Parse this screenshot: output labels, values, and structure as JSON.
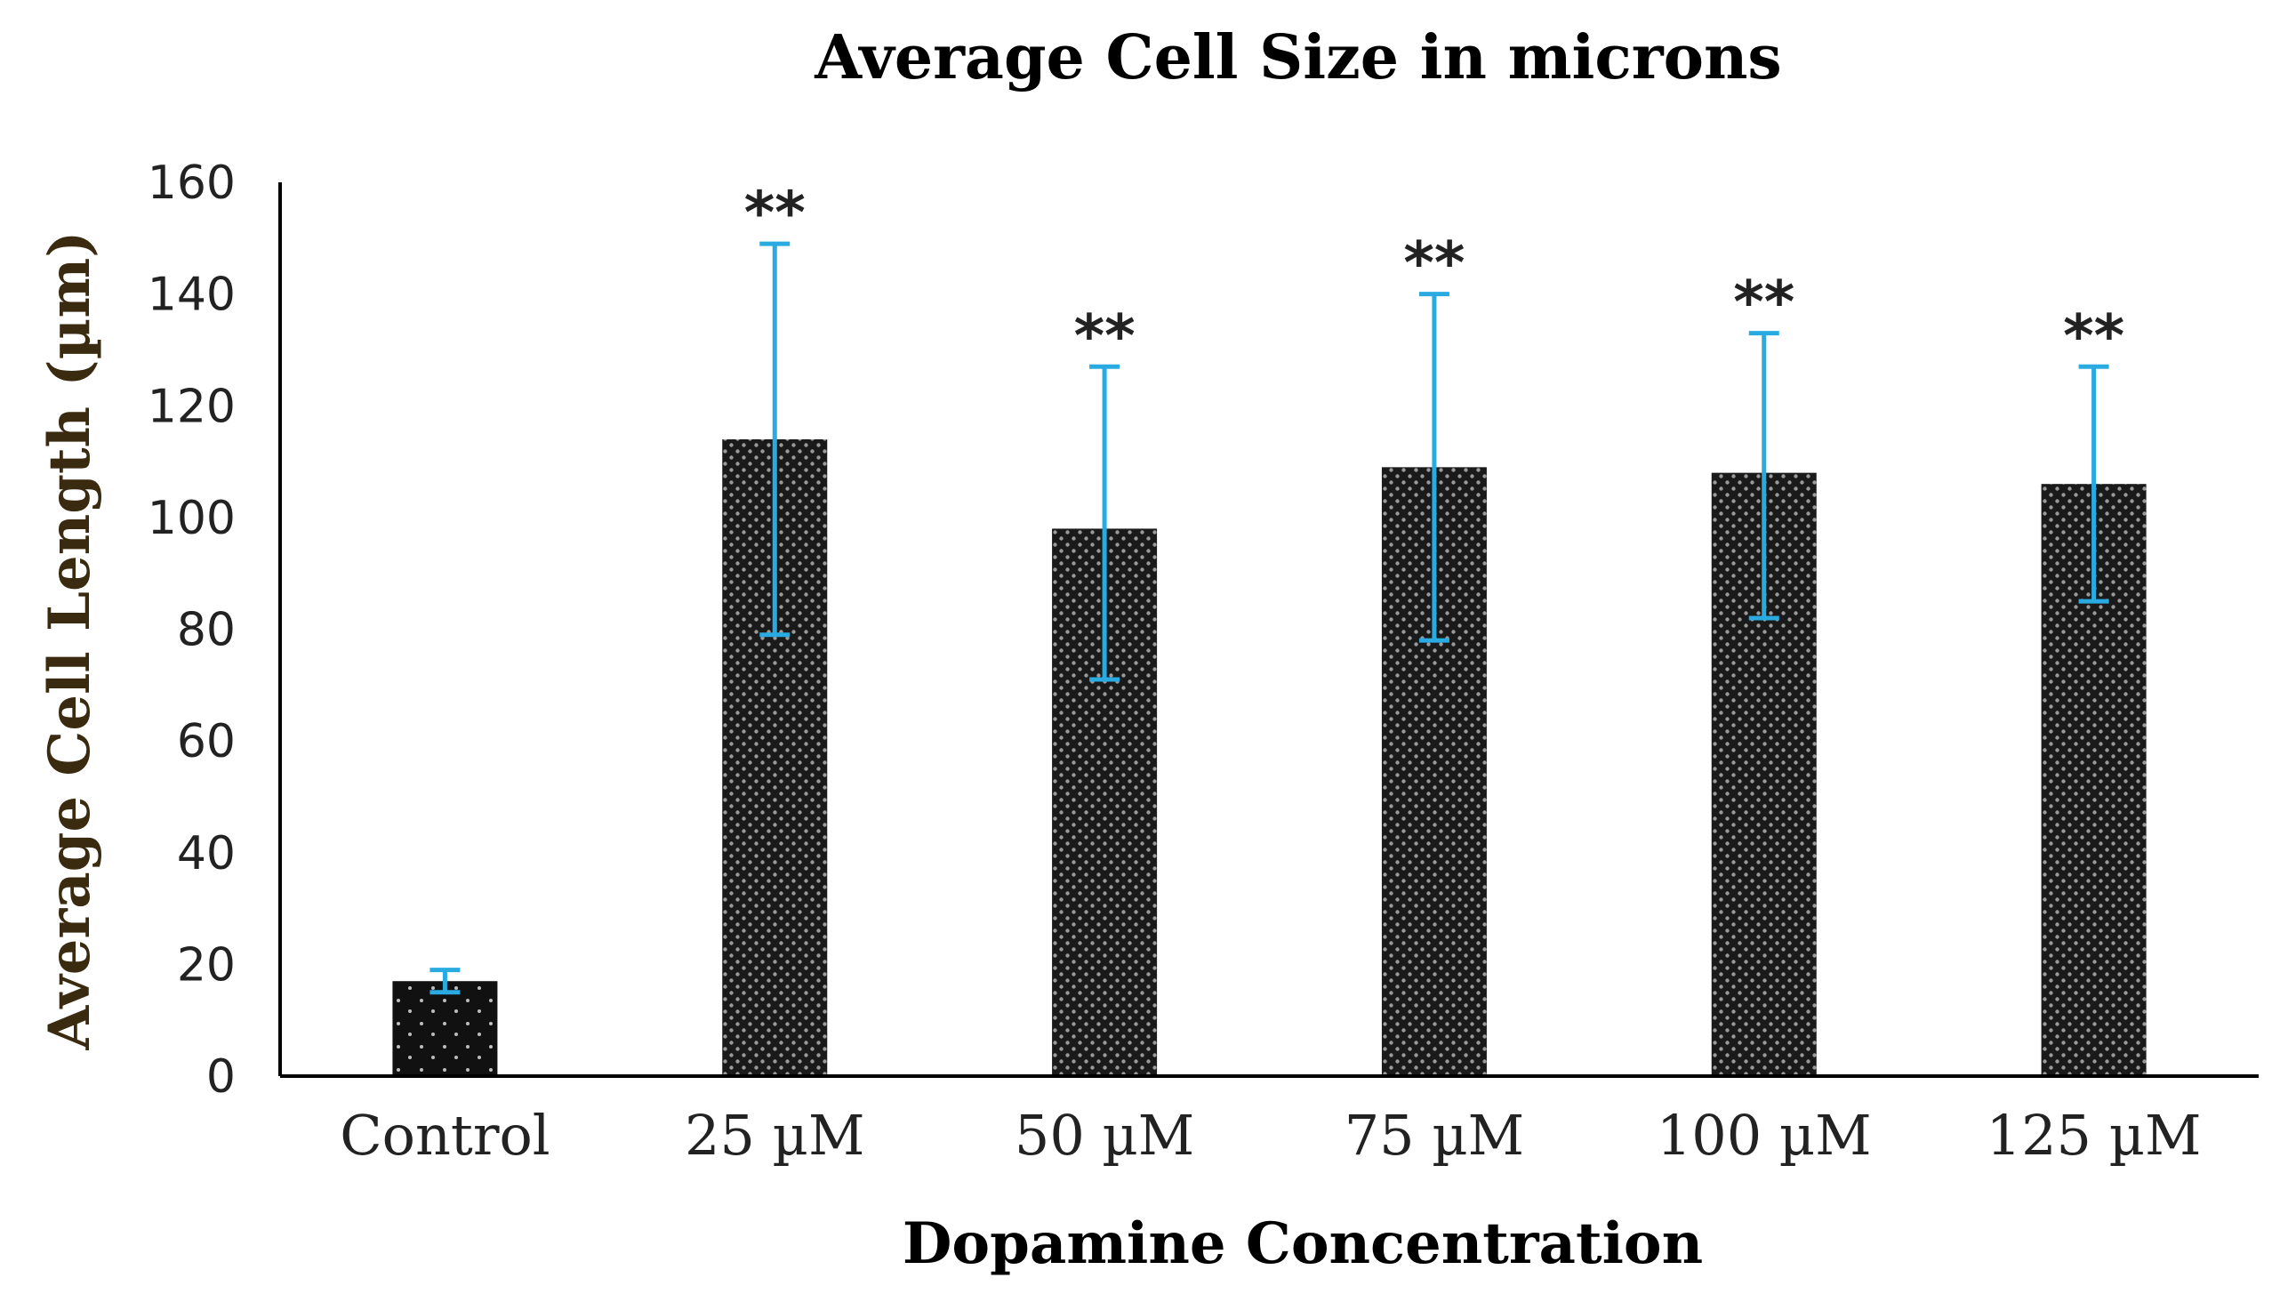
{
  "chart_data": {
    "type": "bar",
    "title": "Average Cell Size in microns",
    "xlabel": "Dopamine Concentration",
    "ylabel": "Average Cell Length (µm)",
    "categories": [
      "Control",
      "25 µM",
      "50 µM",
      "75 µM",
      "100 µM",
      "125 µM"
    ],
    "values": [
      17,
      114,
      98,
      109,
      108,
      106
    ],
    "error_upper": [
      19,
      149,
      127,
      140,
      133,
      127
    ],
    "error_lower": [
      15,
      79,
      71,
      78,
      82,
      85
    ],
    "annotations": [
      "",
      "**",
      "**",
      "**",
      "**",
      "**"
    ],
    "yticks": [
      "0",
      "20",
      "40",
      "60",
      "80",
      "100",
      "120",
      "140",
      "160"
    ],
    "ylim": [
      0,
      160
    ],
    "grid": false,
    "legend": "none",
    "colors": {
      "bar": "#1a1a1a",
      "bar_dots": "#9a9a9a",
      "error_bar": "#29abe2",
      "axis": "#000000"
    }
  }
}
